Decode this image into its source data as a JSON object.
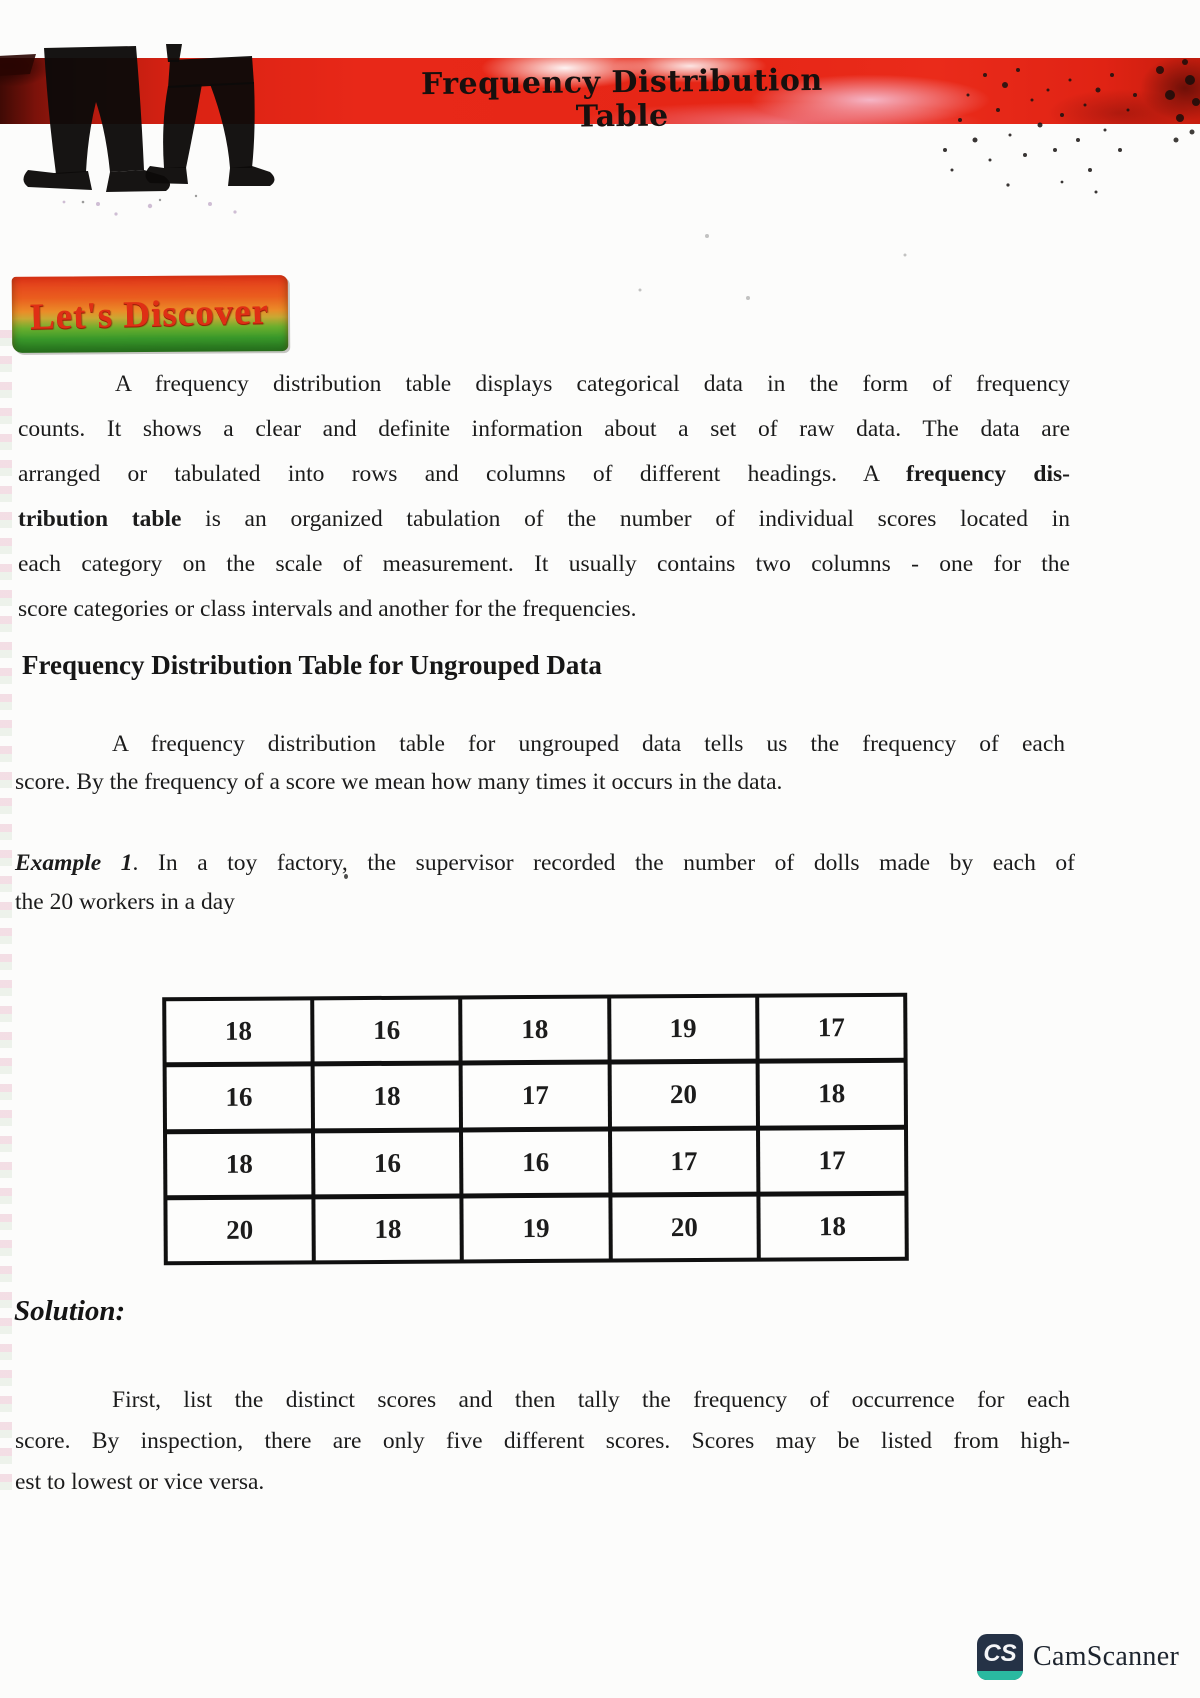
{
  "banner": {
    "title": "Frequency Distribution Table"
  },
  "discover_badge": {
    "label": "Let's Discover"
  },
  "intro": {
    "lines": [
      [
        {
          "t": "A frequency distribution table displays categorical data in the form of frequency"
        }
      ],
      [
        {
          "t": "counts. It shows a clear and definite information about a set of raw data. The data are"
        }
      ],
      [
        {
          "t": "arranged or tabulated into rows and columns of different headings.  A "
        },
        {
          "t": "frequency dis-",
          "b": true
        }
      ],
      [
        {
          "t": "tribution table",
          "b": true
        },
        {
          "t": " is an organized tabulation of the number of individual scores located in"
        }
      ],
      [
        {
          "t": "each category on the scale of measurement. It usually contains two columns - one for the"
        }
      ],
      [
        {
          "t": "score categories or class intervals and another for the frequencies."
        }
      ]
    ]
  },
  "section_heading": "Frequency Distribution Table for Ungrouped Data",
  "ungrouped": {
    "lines": [
      [
        {
          "t": "A frequency distribution table for ungrouped data tells us the frequency of each"
        }
      ],
      [
        {
          "t": "score. By the frequency of a score we mean how many times it occurs in the data."
        }
      ]
    ]
  },
  "example": {
    "lines": [
      [
        {
          "t": "Example 1",
          "b": true,
          "i": true
        },
        {
          "t": ". In a toy factory, the supervisor recorded the number of dolls made by each of"
        }
      ],
      [
        {
          "t": "the 20 workers in a day"
        }
      ]
    ]
  },
  "scores_table": {
    "rows": [
      [
        18,
        16,
        18,
        19,
        17
      ],
      [
        16,
        18,
        17,
        20,
        18
      ],
      [
        18,
        16,
        16,
        17,
        17
      ],
      [
        20,
        18,
        19,
        20,
        18
      ]
    ]
  },
  "solution_label": "Solution:",
  "solution": {
    "lines": [
      [
        {
          "t": "First, list the distinct scores and then tally the frequency of occurrence for each"
        }
      ],
      [
        {
          "t": "score. By inspection, there are only five different scores. Scores may be listed from high-"
        }
      ],
      [
        {
          "t": "est to lowest or vice versa."
        }
      ]
    ]
  },
  "camscanner": {
    "icon_text": "CS",
    "label": "CamScanner"
  },
  "colors": {
    "banner_red": "#e62616",
    "badge_orange": "#ea5d1e",
    "badge_green": "#3a9a2b",
    "badge_text_red": "#df2f15",
    "body_text": "#1b1b1b",
    "camscanner_navy": "#253246",
    "camscanner_teal": "#2ab9a0"
  }
}
